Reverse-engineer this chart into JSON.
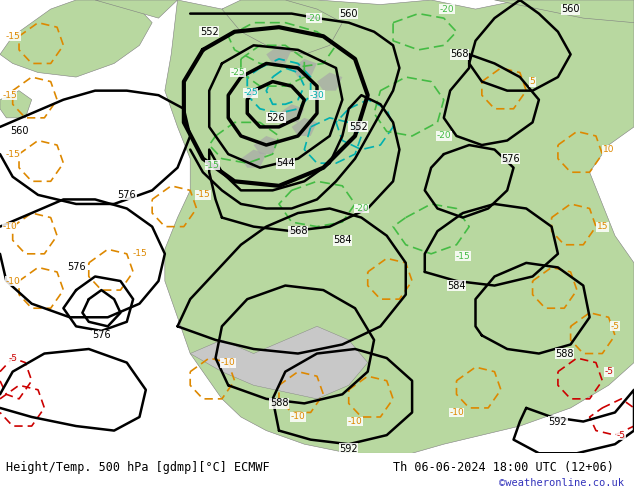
{
  "title_left": "Height/Temp. 500 hPa [gdmp][°C] ECMWF",
  "title_right": "Th 06-06-2024 18:00 UTC (12+06)",
  "watermark": "©weatheronline.co.uk",
  "bg_color": "#c8c8c8",
  "land_color": "#b8d8a0",
  "land_color2": "#c8e0b0",
  "fig_width": 6.34,
  "fig_height": 4.9,
  "dpi": 100,
  "title_fontsize": 8.5,
  "watermark_color": "#3333bb",
  "watermark_fontsize": 7.5
}
